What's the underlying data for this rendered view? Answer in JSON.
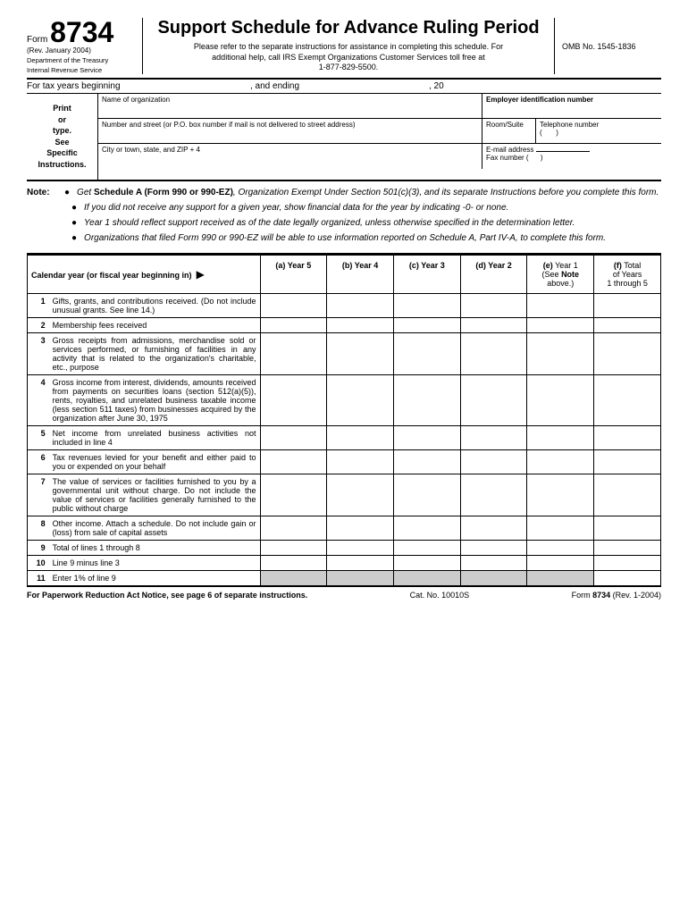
{
  "header": {
    "form_label": "Form",
    "form_number": "8734",
    "rev_date": "(Rev. January 2004)",
    "dept1": "Department of the Treasury",
    "dept2": "Internal Revenue Service",
    "title": "Support Schedule for Advance Ruling Period",
    "subtitle1": "Please refer to the separate instructions for assistance in completing this schedule. For",
    "subtitle2": "additional help, call IRS Exempt Organizations Customer Services toll free at",
    "subtitle3": "1-877-829-5500.",
    "omb": "OMB No. 1545-1836"
  },
  "tax_year": {
    "beginning": "For tax years beginning",
    "ending": ", and ending",
    "twenty": ", 20"
  },
  "org": {
    "print_type": "Print or type. See Specific Instructions.",
    "name_label": "Name of organization",
    "ein_label": "Employer identification number",
    "address_label": "Number and street (or P.O. box number if mail is not delivered to street address)",
    "room_label": "Room/Suite",
    "phone_label": "Telephone number",
    "city_label": "City or town, state, and ZIP + 4",
    "email_label": "E-mail address",
    "fax_label": "Fax number  ("
  },
  "note": {
    "label": "Note:",
    "bullets": [
      "Get Schedule A (Form 990 or 990-EZ), Organization Exempt Under Section 501(c)(3), and its separate Instructions before you complete this form.",
      "If you did not receive any support for a given year, show financial data for the year by indicating -0- or none.",
      "Year 1 should reflect support received as of the date legally organized, unless otherwise specified in the determination letter.",
      "Organizations that filed Form 990 or 990-EZ will be able to use information reported on Schedule A, Part IV-A, to complete this form."
    ]
  },
  "table": {
    "cal_header": "Calendar year (or fiscal year beginning in)",
    "cols": [
      "(a) Year 5",
      "(b) Year 4",
      "(c) Year 3",
      "(d) Year 2",
      "(e) Year 1 (See Note above.)",
      "(f) Total of Years 1 through 5"
    ],
    "rows": [
      {
        "n": "1",
        "d": "Gifts, grants, and contributions received. (Do not include unusual grants. See line 14.)"
      },
      {
        "n": "2",
        "d": "Membership fees received"
      },
      {
        "n": "3",
        "d": "Gross receipts from admissions, merchandise sold or services performed, or furnishing of facilities in any activity that is related to the organization's charitable, etc., purpose"
      },
      {
        "n": "4",
        "d": "Gross income from interest, dividends, amounts received from payments on securities loans (section 512(a)(5)), rents, royalties, and unrelated business taxable income (less section 511 taxes) from businesses acquired by the organization after June 30, 1975"
      },
      {
        "n": "5",
        "d": "Net income from unrelated business activities not included in line 4"
      },
      {
        "n": "6",
        "d": "Tax revenues levied for your benefit and either paid to you or expended on your behalf"
      },
      {
        "n": "7",
        "d": "The value of services or facilities furnished to you by a governmental unit without charge. Do not include the value of services or facilities generally furnished to the public without charge"
      },
      {
        "n": "8",
        "d": "Other income. Attach a schedule. Do not include gain or (loss) from sale of capital assets"
      },
      {
        "n": "9",
        "d": "Total of lines 1 through 8"
      },
      {
        "n": "10",
        "d": "Line 9 minus line 3"
      },
      {
        "n": "11",
        "d": "Enter 1% of line 9"
      }
    ]
  },
  "footer": {
    "left": "For Paperwork Reduction Act Notice, see page 6 of separate instructions.",
    "center": "Cat. No. 10010S",
    "right_label": "Form",
    "right_num": "8734",
    "right_rev": "(Rev. 1-2004)"
  }
}
